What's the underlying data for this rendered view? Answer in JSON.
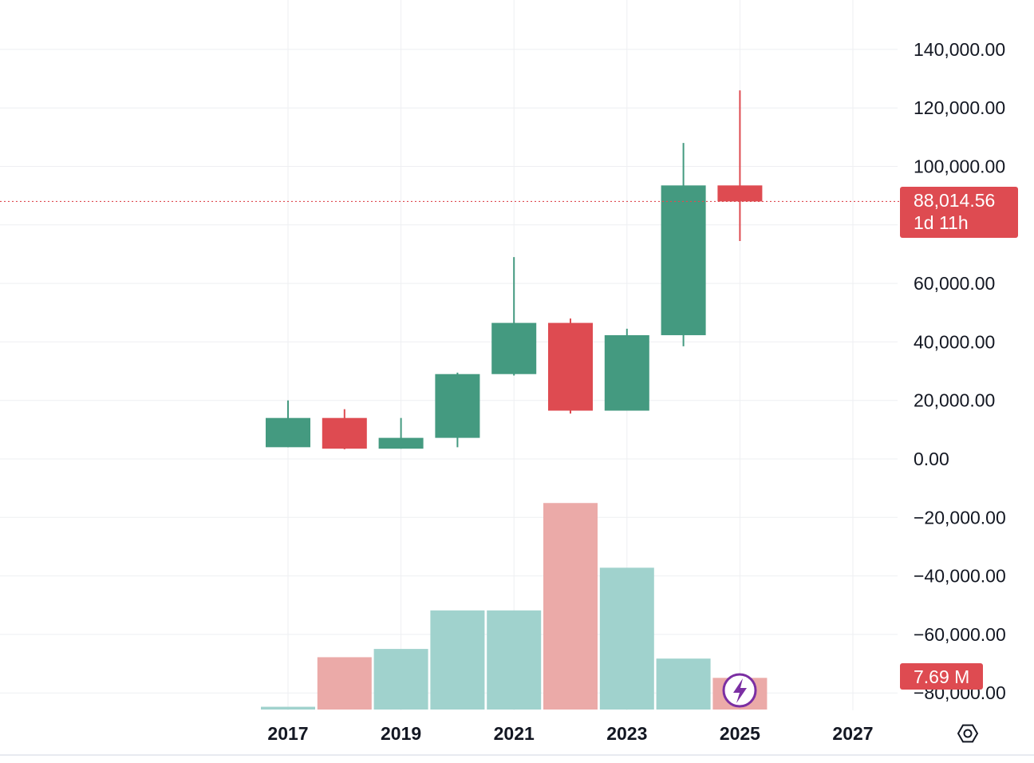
{
  "chart_data": {
    "type": "candlestick",
    "x_ticks": [
      "2017",
      "2019",
      "2021",
      "2023",
      "2025",
      "2027"
    ],
    "y_ticks": [
      "140,000.00",
      "120,000.00",
      "100,000.00",
      "60,000.00",
      "40,000.00",
      "20,000.00",
      "0.00",
      "−20,000.00",
      "−40,000.00",
      "−60,000.00",
      "−80,000.00"
    ],
    "y_tick_values": [
      140000,
      120000,
      100000,
      60000,
      40000,
      20000,
      0,
      -20000,
      -40000,
      -60000,
      -80000
    ],
    "ylim": [
      -85000,
      157000
    ],
    "x_range": [
      2013.3,
      2028.9
    ],
    "grid": true,
    "candles": [
      {
        "year": 2017,
        "open": 4000,
        "close": 14000,
        "high": 20000,
        "low": 4000,
        "direction": "up"
      },
      {
        "year": 2018,
        "open": 14000,
        "close": 3500,
        "high": 17000,
        "low": 3300,
        "direction": "down"
      },
      {
        "year": 2019,
        "open": 3500,
        "close": 7200,
        "high": 14000,
        "low": 3500,
        "direction": "up"
      },
      {
        "year": 2020,
        "open": 7200,
        "close": 29000,
        "high": 29500,
        "low": 4000,
        "direction": "up"
      },
      {
        "year": 2021,
        "open": 29000,
        "close": 46500,
        "high": 69000,
        "low": 28500,
        "direction": "up"
      },
      {
        "year": 2022,
        "open": 46500,
        "close": 16500,
        "high": 48000,
        "low": 15500,
        "direction": "down"
      },
      {
        "year": 2023,
        "open": 16500,
        "close": 42300,
        "high": 44500,
        "low": 16500,
        "direction": "up"
      },
      {
        "year": 2024,
        "open": 42300,
        "close": 93500,
        "high": 108000,
        "low": 38500,
        "direction": "up"
      },
      {
        "year": 2025,
        "open": 93500,
        "close": 88014.56,
        "high": 126000,
        "low": 74500,
        "direction": "down"
      }
    ],
    "volume": [
      {
        "year": 2017,
        "value": 1.0,
        "direction": "up"
      },
      {
        "year": 2018,
        "value": 19.0,
        "direction": "down"
      },
      {
        "year": 2019,
        "value": 22.0,
        "direction": "up"
      },
      {
        "year": 2020,
        "value": 36.0,
        "direction": "up"
      },
      {
        "year": 2021,
        "value": 36.0,
        "direction": "up"
      },
      {
        "year": 2022,
        "value": 75.0,
        "direction": "down"
      },
      {
        "year": 2023,
        "value": 51.5,
        "direction": "up"
      },
      {
        "year": 2024,
        "value": 18.5,
        "direction": "up"
      },
      {
        "year": 2025,
        "value": 11.5,
        "direction": "down"
      }
    ],
    "volume_max": 80,
    "last_price": {
      "value": 88014.56,
      "label": "88,014.56",
      "countdown": "1d 11h"
    },
    "volume_badge": "7.69 M",
    "colors": {
      "up": "#449a80",
      "down": "#de4b51",
      "volume_up": "#a0d2cd",
      "volume_down": "#ebaaa8",
      "grid": "#eeeff2",
      "price_line": "#de4b51",
      "badge": "#de4b51",
      "lightning_badge": "#7b2fa3"
    },
    "icons": {
      "lightning": "lightning-bolt-icon",
      "settings": "hexagon-settings-icon"
    }
  }
}
